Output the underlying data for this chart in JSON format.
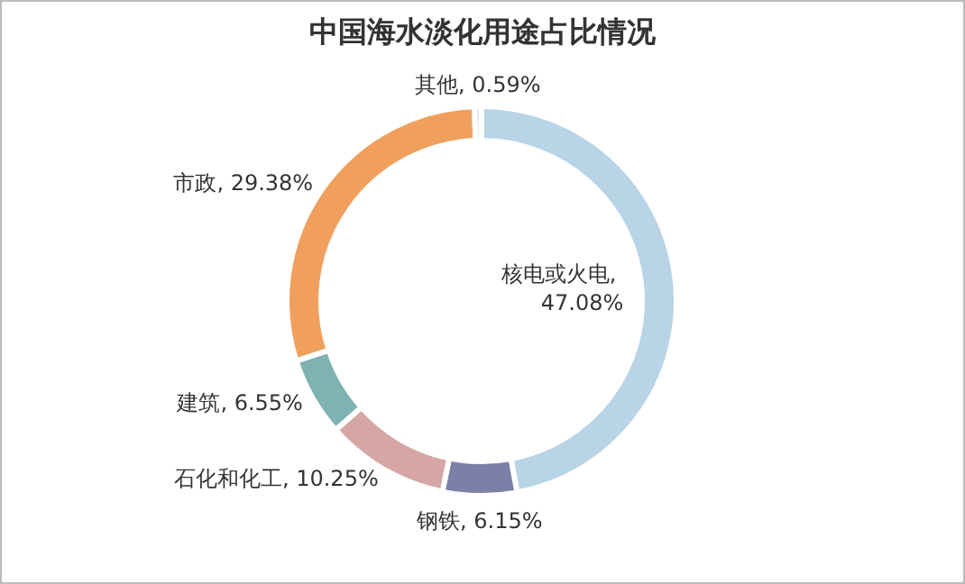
{
  "chart_data": {
    "type": "donut",
    "title": "中国海水淡化用途占比情况",
    "categories": [
      "核电或火电",
      "钢铁",
      "石化和化工",
      "建筑",
      "市政",
      "其他"
    ],
    "values": [
      47.08,
      6.15,
      10.25,
      6.55,
      29.38,
      0.59
    ],
    "value_labels": [
      ", 47.08%",
      ", 6.15%",
      ", 10.25%",
      ", 6.55%",
      ", 29.38%",
      ", 0.59%"
    ],
    "colors": [
      "#b8d4e6",
      "#7b80a6",
      "#d5a6a4",
      "#7fb2b2",
      "#f0a05c",
      "#dce6ee"
    ]
  }
}
